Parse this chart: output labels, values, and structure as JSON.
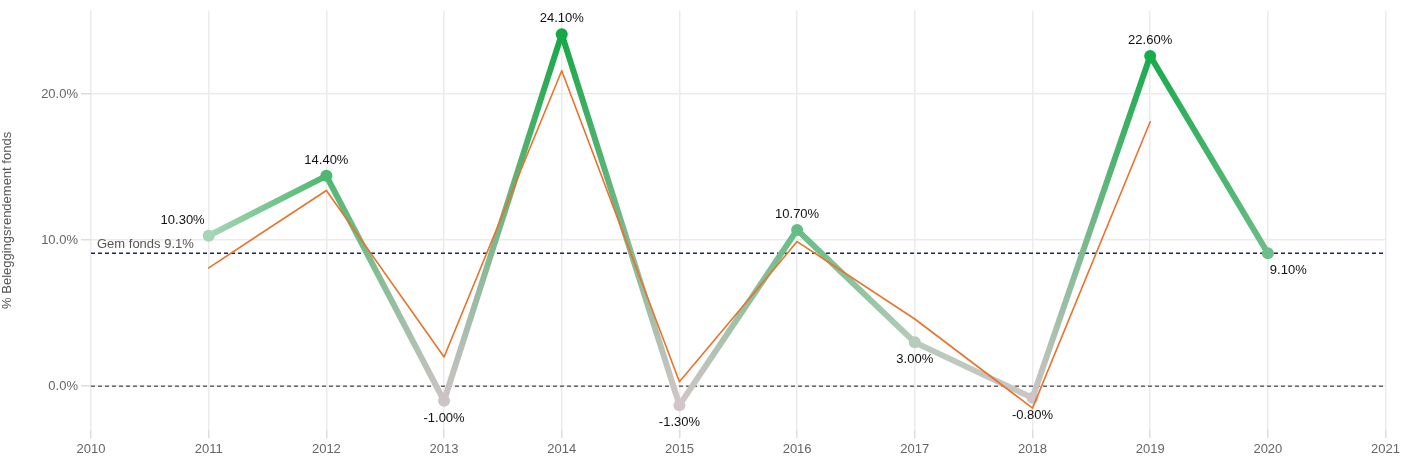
{
  "chart_data": {
    "type": "line",
    "ylabel": "% Beleggingsrendement fonds",
    "x": [
      2011,
      2012,
      2013,
      2014,
      2015,
      2016,
      2017,
      2018,
      2019,
      2020
    ],
    "xlim": [
      2010,
      2021
    ],
    "xticks": [
      2010,
      2011,
      2012,
      2013,
      2014,
      2015,
      2016,
      2017,
      2018,
      2019,
      2020,
      2021
    ],
    "ylim": [
      -3,
      25.7
    ],
    "yticks": [
      {
        "value": 0,
        "label": "0.0%"
      },
      {
        "value": 10,
        "label": "10.0%"
      },
      {
        "value": 20,
        "label": "20.0%"
      }
    ],
    "grid": true,
    "legend": false,
    "series": [
      {
        "color": "#4db870",
        "colors": [
          "#a5d6b4",
          "#4db870",
          "#cdc3c5",
          "#16a847",
          "#d2c6c9",
          "#66bd84",
          "#b6cbbb",
          "#cbc5c6",
          "#1aab4c",
          "#6cbd87"
        ],
        "marker": "circle",
        "values": [
          10.3,
          14.4,
          -1.0,
          24.1,
          -1.3,
          10.7,
          3.0,
          -0.8,
          22.6,
          9.1
        ],
        "value_labels": [
          "10.30%",
          "14.40%",
          "-1.00%",
          "24.10%",
          "-1.30%",
          "10.70%",
          "3.00%",
          "-0.80%",
          "22.60%",
          "9.10%"
        ]
      },
      {
        "color": "#e8732c",
        "marker": "none",
        "values": [
          8.1,
          13.4,
          2.0,
          21.6,
          0.3,
          9.9,
          4.6,
          -1.5,
          18.1,
          null
        ]
      }
    ],
    "ref_lines": [
      {
        "axis": "y",
        "value": 9.1,
        "label": "Gem fonds 9.1%",
        "color": "#1b2366",
        "line_style": "dashed"
      },
      {
        "axis": "y",
        "value": 0,
        "color": "#666666",
        "line_style": "dashed"
      }
    ]
  }
}
